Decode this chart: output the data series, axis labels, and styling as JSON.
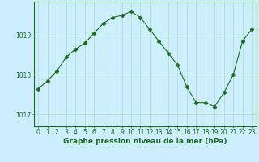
{
  "x": [
    0,
    1,
    2,
    3,
    4,
    5,
    6,
    7,
    8,
    9,
    10,
    11,
    12,
    13,
    14,
    15,
    16,
    17,
    18,
    19,
    20,
    21,
    22,
    23
  ],
  "y": [
    1017.65,
    1017.85,
    1018.1,
    1018.45,
    1018.65,
    1018.8,
    1019.05,
    1019.3,
    1019.45,
    1019.5,
    1019.6,
    1019.45,
    1019.15,
    1018.85,
    1018.55,
    1018.25,
    1017.7,
    1017.3,
    1017.3,
    1017.2,
    1017.55,
    1018.0,
    1018.85,
    1019.15
  ],
  "line_color": "#1a6e1a",
  "marker": "D",
  "marker_size": 2.5,
  "bg_color": "#cceeff",
  "grid_color": "#aaddbb",
  "xlabel": "Graphe pression niveau de la mer (hPa)",
  "xlabel_fontsize": 6.5,
  "tick_fontsize": 5.5,
  "ytick_fontsize": 5.5,
  "yticks": [
    1017,
    1018,
    1019
  ],
  "ylim": [
    1016.7,
    1019.85
  ],
  "xlim": [
    -0.5,
    23.5
  ]
}
